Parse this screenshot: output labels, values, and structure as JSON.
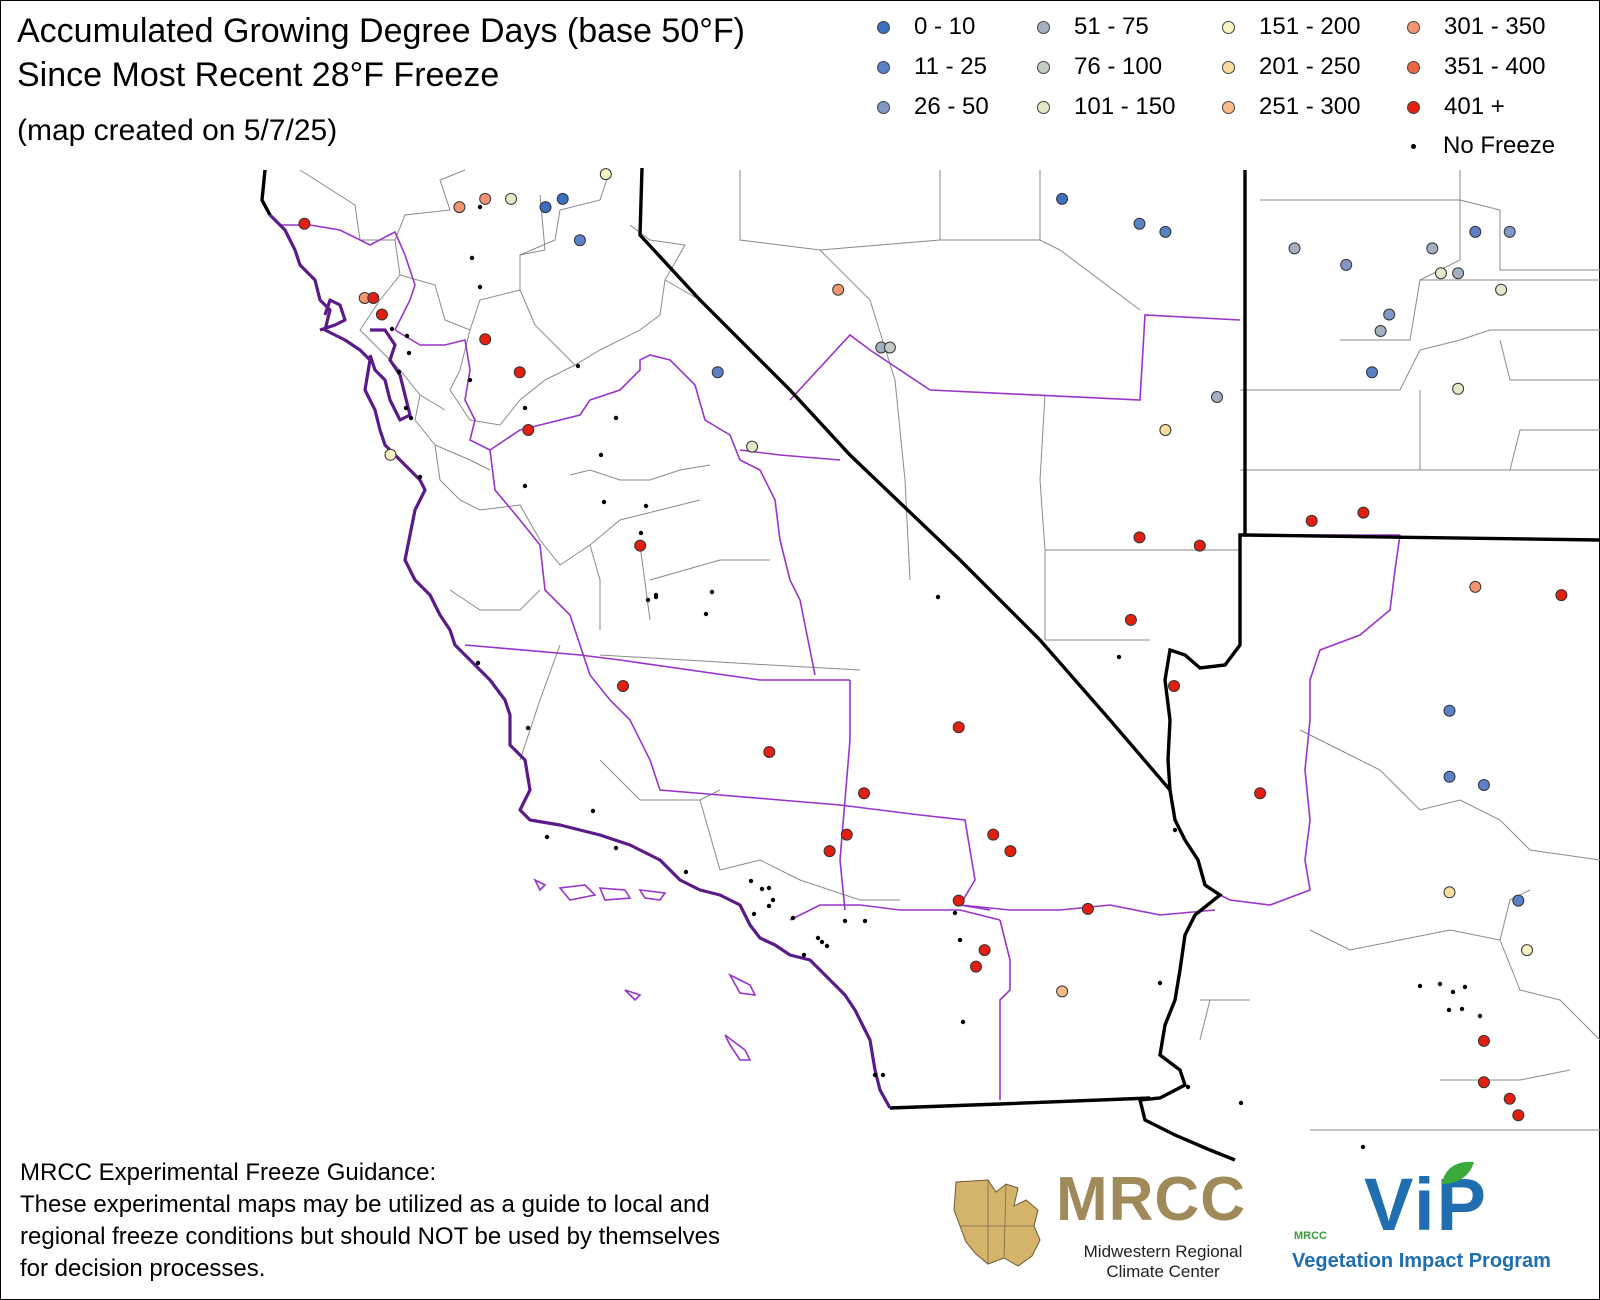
{
  "title": {
    "line1": "Accumulated Growing Degree Days (base 50°F)",
    "line2": "Since Most Recent 28°F Freeze",
    "created": "(map created on 5/7/25)"
  },
  "legend": [
    {
      "label": "0 - 10",
      "color": "#3b6fc0"
    },
    {
      "label": "11 - 25",
      "color": "#5a80c8"
    },
    {
      "label": "26 - 50",
      "color": "#7f97c4"
    },
    {
      "label": "51 - 75",
      "color": "#a4b0bf"
    },
    {
      "label": "76 - 100",
      "color": "#c3cbc2"
    },
    {
      "label": "101 - 150",
      "color": "#e3e8c8"
    },
    {
      "label": "151 - 200",
      "color": "#f7f3c2"
    },
    {
      "label": "201 - 250",
      "color": "#fbdda0"
    },
    {
      "label": "251 - 300",
      "color": "#f9b98c"
    },
    {
      "label": "301 - 350",
      "color": "#f39670"
    },
    {
      "label": "351 - 400",
      "color": "#ec6646"
    },
    {
      "label": "401 +",
      "color": "#e32010"
    },
    {
      "label": "No Freeze",
      "color": "#000000"
    }
  ],
  "colors": {
    "state_border": "#000000",
    "climate_division_border": "#8a2be2",
    "county_border": "#808080",
    "coast": "#5a1a8a"
  },
  "map": {
    "projection_region": "Western United States / Northern Mexico (California, Nevada, Arizona)",
    "stations": [
      {
        "cat": 11,
        "lng": -124.0,
        "lat": 41.7
      },
      {
        "cat": 9,
        "lng": -123.3,
        "lat": 40.8
      },
      {
        "cat": 11,
        "lng": -123.2,
        "lat": 40.8
      },
      {
        "cat": 11,
        "lng": -123.1,
        "lat": 40.6
      },
      {
        "cat": 11,
        "lng": -121.9,
        "lat": 40.3
      },
      {
        "cat": 11,
        "lng": -121.5,
        "lat": 39.9
      },
      {
        "cat": 6,
        "lng": -123.0,
        "lat": 38.9
      },
      {
        "cat": 11,
        "lng": -121.4,
        "lat": 39.2
      },
      {
        "cat": 11,
        "lng": -120.1,
        "lat": 37.8
      },
      {
        "cat": 5,
        "lng": -118.8,
        "lat": 39.0
      },
      {
        "cat": 11,
        "lng": -120.3,
        "lat": 36.1
      },
      {
        "cat": 11,
        "lng": -118.6,
        "lat": 35.3
      },
      {
        "cat": 11,
        "lng": -117.5,
        "lat": 34.8
      },
      {
        "cat": 11,
        "lng": -116.4,
        "lat": 35.6
      },
      {
        "cat": 11,
        "lng": -117.9,
        "lat": 34.1
      },
      {
        "cat": 11,
        "lng": -117.7,
        "lat": 34.3
      },
      {
        "cat": 11,
        "lng": -116.0,
        "lat": 34.3
      },
      {
        "cat": 11,
        "lng": -115.8,
        "lat": 34.1
      },
      {
        "cat": 11,
        "lng": -116.4,
        "lat": 33.5
      },
      {
        "cat": 11,
        "lng": -114.9,
        "lat": 33.4
      },
      {
        "cat": 11,
        "lng": -116.1,
        "lat": 32.9
      },
      {
        "cat": 11,
        "lng": -116.2,
        "lat": 32.7
      },
      {
        "cat": 8,
        "lng": -115.2,
        "lat": 32.4
      },
      {
        "cat": 9,
        "lng": -122.2,
        "lat": 41.9
      },
      {
        "cat": 9,
        "lng": -121.9,
        "lat": 42.0
      },
      {
        "cat": 5,
        "lng": -121.6,
        "lat": 42.0
      },
      {
        "cat": 0,
        "lng": -121.2,
        "lat": 41.9
      },
      {
        "cat": 0,
        "lng": -121.0,
        "lat": 42.0
      },
      {
        "cat": 1,
        "lng": -120.8,
        "lat": 41.5
      },
      {
        "cat": 6,
        "lng": -120.5,
        "lat": 42.3
      },
      {
        "cat": 1,
        "lng": -119.2,
        "lat": 39.9
      },
      {
        "cat": 9,
        "lng": -117.8,
        "lat": 40.9
      },
      {
        "cat": 3,
        "lng": -117.3,
        "lat": 40.2
      },
      {
        "cat": 4,
        "lng": -117.2,
        "lat": 40.2
      },
      {
        "cat": 0,
        "lng": -115.2,
        "lat": 42.0
      },
      {
        "cat": 1,
        "lng": -114.3,
        "lat": 41.7
      },
      {
        "cat": 1,
        "lng": -114.0,
        "lat": 41.6
      },
      {
        "cat": 3,
        "lng": -113.4,
        "lat": 39.6
      },
      {
        "cat": 7,
        "lng": -114.0,
        "lat": 39.2
      },
      {
        "cat": 11,
        "lng": -114.3,
        "lat": 37.9
      },
      {
        "cat": 11,
        "lng": -113.6,
        "lat": 37.8
      },
      {
        "cat": 11,
        "lng": -114.4,
        "lat": 36.9
      },
      {
        "cat": 11,
        "lng": -113.9,
        "lat": 36.1
      },
      {
        "cat": 11,
        "lng": -112.9,
        "lat": 34.8
      },
      {
        "cat": 3,
        "lng": -112.5,
        "lat": 41.4
      },
      {
        "cat": 2,
        "lng": -111.9,
        "lat": 41.2
      },
      {
        "cat": 2,
        "lng": -111.4,
        "lat": 40.6
      },
      {
        "cat": 3,
        "lng": -111.5,
        "lat": 40.4
      },
      {
        "cat": 5,
        "lng": -110.8,
        "lat": 41.1
      },
      {
        "cat": 1,
        "lng": -111.6,
        "lat": 39.9
      },
      {
        "cat": 5,
        "lng": -110.6,
        "lat": 39.7
      },
      {
        "cat": 11,
        "lng": -112.3,
        "lat": 38.1
      },
      {
        "cat": 11,
        "lng": -111.7,
        "lat": 38.2
      },
      {
        "cat": 9,
        "lng": -110.4,
        "lat": 37.3
      },
      {
        "cat": 11,
        "lng": -109.4,
        "lat": 37.2
      },
      {
        "cat": 1,
        "lng": -110.7,
        "lat": 35.8
      },
      {
        "cat": 1,
        "lng": -110.7,
        "lat": 35.0
      },
      {
        "cat": 1,
        "lng": -110.3,
        "lat": 34.9
      },
      {
        "cat": 7,
        "lng": -110.7,
        "lat": 33.6
      },
      {
        "cat": 1,
        "lng": -109.9,
        "lat": 33.5
      },
      {
        "cat": 6,
        "lng": -109.8,
        "lat": 32.9
      },
      {
        "cat": 11,
        "lng": -110.3,
        "lat": 31.8
      },
      {
        "cat": 11,
        "lng": -110.3,
        "lat": 31.3
      },
      {
        "cat": 11,
        "lng": -110.0,
        "lat": 31.1
      },
      {
        "cat": 11,
        "lng": -109.9,
        "lat": 30.9
      },
      {
        "cat": 1,
        "lng": -110.4,
        "lat": 41.6
      },
      {
        "cat": 3,
        "lng": -110.9,
        "lat": 41.4
      },
      {
        "cat": 3,
        "lng": -110.6,
        "lat": 41.1
      },
      {
        "cat": 2,
        "lng": -110.0,
        "lat": 41.6
      },
      {
        "cat": 5,
        "lng": -110.1,
        "lat": 40.9
      }
    ],
    "no_freeze_count": 62
  },
  "disclaimer": {
    "heading": "MRCC Experimental Freeze Guidance:",
    "lines": [
      "These experimental maps may be utilized as a guide to local and",
      "regional freeze conditions but should NOT be used by themselves",
      "for decision processes."
    ]
  },
  "logos": {
    "mrcc": {
      "word": "MRCC",
      "sub1": "Midwestern Regional",
      "sub2": "Climate Center"
    },
    "vip": {
      "word": "ViP",
      "small": "MRCC",
      "sub": "Vegetation Impact Program"
    }
  }
}
